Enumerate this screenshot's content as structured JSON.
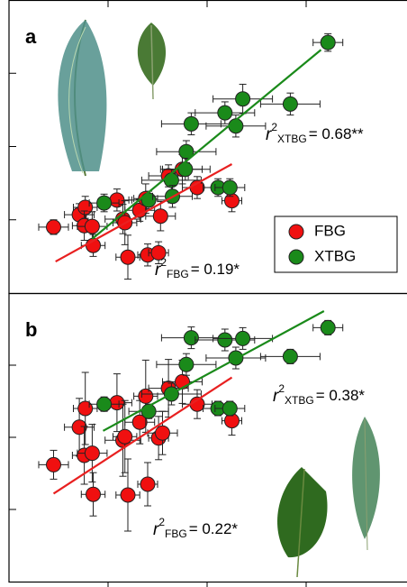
{
  "chart_data": [
    {
      "type": "scatter",
      "panel": "a",
      "xlim": [
        0,
        4
      ],
      "ylim": [
        0,
        4
      ],
      "xticks": [
        1,
        2,
        3
      ],
      "yticks": [
        1,
        2,
        3
      ],
      "legend": "lower right",
      "series": [
        {
          "name": "FBG",
          "color": "#f01010",
          "line_color": "#e82020",
          "x": [
            0.45,
            0.71,
            0.77,
            0.76,
            0.84,
            0.85,
            1.09,
            1.15,
            1.17,
            1.2,
            1.32,
            1.38,
            1.4,
            1.51,
            1.53,
            1.61,
            1.75,
            1.9,
            2.25
          ],
          "y": [
            0.9,
            1.07,
            1.17,
            0.92,
            0.91,
            0.65,
            1.27,
            1.01,
            0.96,
            0.49,
            1.13,
            1.29,
            0.52,
            0.55,
            1.05,
            1.6,
            1.69,
            1.44,
            1.26
          ],
          "xerr": [
            0.15,
            0.15,
            0.12,
            0.12,
            0.15,
            0.12,
            0.15,
            0.18,
            0.12,
            0.12,
            0.15,
            0.12,
            0.1,
            0.1,
            0.15,
            0.2,
            0.2,
            0.15,
            0.1
          ],
          "yerr": [
            0.1,
            0.15,
            0.15,
            0.2,
            0.2,
            0.15,
            0.15,
            0.2,
            0.3,
            0.3,
            0.15,
            0.2,
            0.15,
            0.15,
            0.2,
            0.15,
            0.2,
            0.15,
            0.15
          ],
          "fit": {
            "x": [
              0.47,
              2.25
            ],
            "y": [
              0.43,
              1.76
            ]
          }
        },
        {
          "name": "XTBG",
          "color": "#1a8a1a",
          "line_color": "#1a8a1a",
          "x": [
            0.96,
            1.41,
            1.64,
            1.65,
            1.79,
            1.78,
            1.84,
            2.11,
            2.23,
            2.18,
            2.36,
            2.29,
            2.84,
            3.22
          ],
          "y": [
            1.23,
            1.27,
            1.54,
            1.32,
            1.93,
            1.69,
            2.31,
            1.44,
            1.44,
            2.46,
            2.65,
            2.28,
            2.58,
            3.42
          ],
          "xerr": [
            0.15,
            0.2,
            0.3,
            0.2,
            0.3,
            0.25,
            0.3,
            0.15,
            0.15,
            0.3,
            0.3,
            0.3,
            0.3,
            0.15
          ],
          "yerr": [
            0.12,
            0.12,
            0.15,
            0.15,
            0.15,
            0.15,
            0.15,
            0.12,
            0.12,
            0.15,
            0.2,
            0.15,
            0.15,
            0.12
          ],
          "fit": {
            "x": [
              0.84,
              3.15
            ],
            "y": [
              0.74,
              3.32
            ]
          }
        }
      ],
      "annotations": [
        {
          "text": "r",
          "sup": "2",
          "sub": "XTBG",
          "value": "=  0.68**"
        },
        {
          "text": "r",
          "sup": "2",
          "sub": "FBG",
          "value": "=  0.19*"
        }
      ]
    },
    {
      "type": "scatter",
      "panel": "b",
      "xlim": [
        0,
        4
      ],
      "ylim": [
        0,
        4
      ],
      "xticks": [
        1,
        2,
        3
      ],
      "yticks": [
        1,
        2,
        3
      ],
      "series": [
        {
          "name": "FBG",
          "color": "#f01010",
          "line_color": "#e82020",
          "x": [
            0.45,
            0.71,
            0.77,
            0.76,
            0.84,
            0.85,
            1.09,
            1.15,
            1.17,
            1.2,
            1.32,
            1.38,
            1.4,
            1.51,
            1.55,
            1.61,
            1.75,
            1.9,
            2.25
          ],
          "y": [
            1.62,
            2.14,
            2.4,
            1.75,
            1.78,
            1.21,
            2.48,
            1.96,
            2.01,
            1.2,
            2.21,
            2.57,
            1.35,
            1.99,
            2.06,
            2.68,
            2.77,
            2.46,
            2.23
          ],
          "xerr": [
            0.15,
            0.15,
            0.12,
            0.12,
            0.15,
            0.12,
            0.15,
            0.18,
            0.12,
            0.12,
            0.15,
            0.12,
            0.1,
            0.1,
            0.15,
            0.2,
            0.2,
            0.15,
            0.1
          ],
          "yerr": [
            0.2,
            0.4,
            0.5,
            0.4,
            0.4,
            0.3,
            0.4,
            0.5,
            0.5,
            0.5,
            0.3,
            0.5,
            0.3,
            0.3,
            0.3,
            0.4,
            0.3,
            0.2,
            0.2
          ],
          "fit": {
            "x": [
              0.45,
              2.25
            ],
            "y": [
              1.22,
              2.83
            ]
          }
        },
        {
          "name": "XTBG",
          "color": "#1a8a1a",
          "line_color": "#1a8a1a",
          "x": [
            0.96,
            1.41,
            1.64,
            1.79,
            1.84,
            2.11,
            2.23,
            2.18,
            2.36,
            2.29,
            2.84,
            3.22
          ],
          "y": [
            2.46,
            2.36,
            2.6,
            3.01,
            3.38,
            2.4,
            2.4,
            3.35,
            3.37,
            3.1,
            3.12,
            3.52
          ],
          "xerr": [
            0.15,
            0.2,
            0.3,
            0.3,
            0.3,
            0.15,
            0.15,
            0.3,
            0.3,
            0.3,
            0.3,
            0.15
          ],
          "yerr": [
            0.1,
            0.1,
            0.15,
            0.15,
            0.15,
            0.1,
            0.1,
            0.15,
            0.15,
            0.15,
            0.1,
            0.1
          ],
          "fit": {
            "x": [
              0.95,
              3.18
            ],
            "y": [
              2.09,
              3.75
            ]
          }
        }
      ],
      "annotations": [
        {
          "text": "r",
          "sup": "2",
          "sub": "XTBG",
          "value": "= 0.38*"
        },
        {
          "text": "r",
          "sup": "2",
          "sub": "FBG",
          "value": "= 0.22*"
        }
      ]
    }
  ]
}
